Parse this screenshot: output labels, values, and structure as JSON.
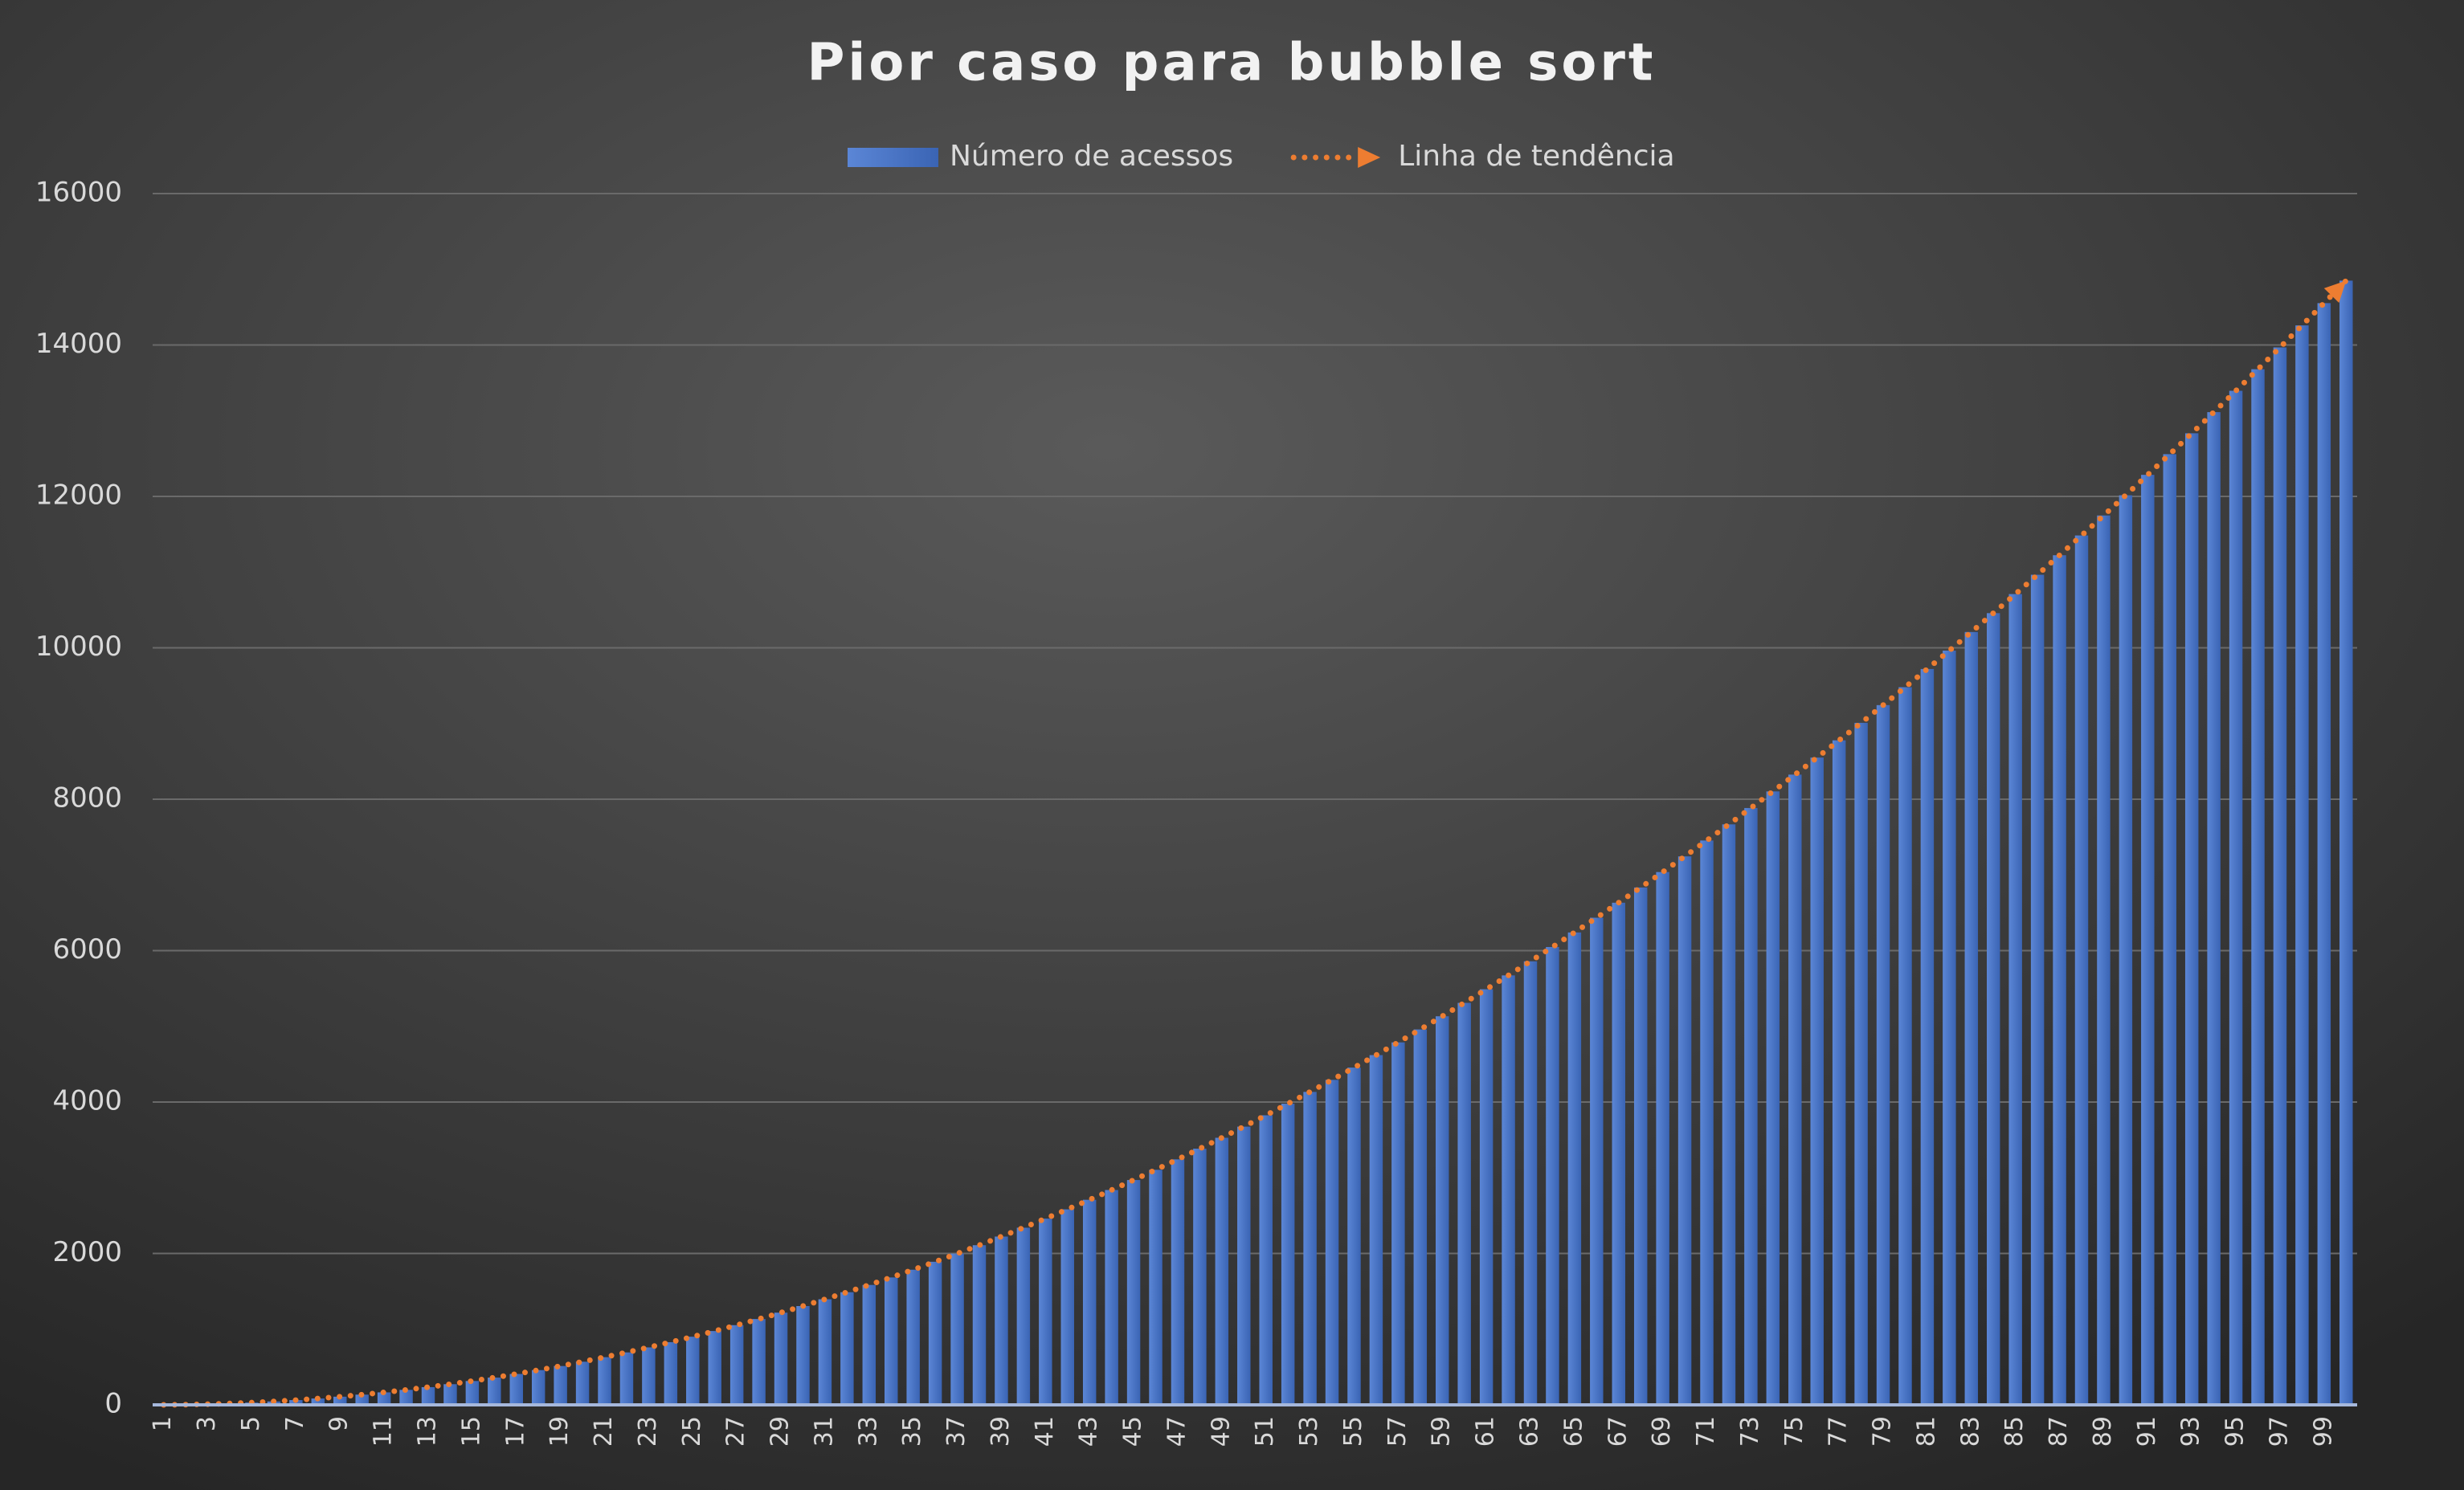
{
  "chart_data": {
    "type": "bar",
    "title": "Pior caso para bubble sort",
    "categories": [
      "1",
      null,
      "3",
      null,
      "5",
      null,
      "7",
      null,
      "9",
      null,
      "11",
      null,
      "13",
      null,
      "15",
      null,
      "17",
      null,
      "19",
      null,
      "21",
      null,
      "23",
      null,
      "25",
      null,
      "27",
      null,
      "29",
      null,
      "31",
      null,
      "33",
      null,
      "35",
      null,
      "37",
      null,
      "39",
      null,
      "41",
      null,
      "43",
      null,
      "45",
      null,
      "47",
      null,
      "49",
      null,
      "51",
      null,
      "53",
      null,
      "55",
      null,
      "57",
      null,
      "59",
      null,
      "61",
      null,
      "63",
      null,
      "65",
      null,
      "67",
      null,
      "69",
      null,
      "71",
      null,
      "73",
      null,
      "75",
      null,
      "77",
      null,
      "79",
      null,
      "81",
      null,
      "83",
      null,
      "85",
      null,
      "87",
      null,
      "89",
      null,
      "91",
      null,
      "93",
      null,
      "95",
      null,
      "97",
      null,
      "99",
      null
    ],
    "series": [
      {
        "name": "Número de acessos",
        "color": "#4472c4",
        "type": "bar",
        "values": [
          0,
          3,
          9,
          18,
          30,
          45,
          63,
          84,
          108,
          135,
          165,
          198,
          234,
          273,
          315,
          360,
          408,
          459,
          513,
          570,
          630,
          693,
          759,
          828,
          900,
          975,
          1053,
          1134,
          1218,
          1305,
          1395,
          1488,
          1584,
          1683,
          1785,
          1890,
          1998,
          2109,
          2223,
          2340,
          2460,
          2583,
          2709,
          2838,
          2970,
          3105,
          3243,
          3384,
          3528,
          3675,
          3825,
          3978,
          4134,
          4293,
          4455,
          4620,
          4788,
          4959,
          5133,
          5310,
          5490,
          5673,
          5859,
          6048,
          6240,
          6435,
          6633,
          6834,
          7038,
          7245,
          7455,
          7668,
          7884,
          8103,
          8325,
          8550,
          8778,
          9009,
          9243,
          9480,
          9720,
          9963,
          10209,
          10458,
          10710,
          10965,
          11223,
          11484,
          11748,
          12015,
          12285,
          12558,
          12834,
          13113,
          13395,
          13680,
          13968,
          14259,
          14553,
          14850
        ]
      },
      {
        "name": "Linha de tendência",
        "color": "#ed7d31",
        "type": "line",
        "values": [
          0,
          3,
          9,
          18,
          30,
          45,
          63,
          84,
          108,
          135,
          165,
          198,
          234,
          273,
          315,
          360,
          408,
          459,
          513,
          570,
          630,
          693,
          759,
          828,
          900,
          975,
          1053,
          1134,
          1218,
          1305,
          1395,
          1488,
          1584,
          1683,
          1785,
          1890,
          1998,
          2109,
          2223,
          2340,
          2460,
          2583,
          2709,
          2838,
          2970,
          3105,
          3243,
          3384,
          3528,
          3675,
          3825,
          3978,
          4134,
          4293,
          4455,
          4620,
          4788,
          4959,
          5133,
          5310,
          5490,
          5673,
          5859,
          6048,
          6240,
          6435,
          6633,
          6834,
          7038,
          7245,
          7455,
          7668,
          7884,
          8103,
          8325,
          8550,
          8778,
          9009,
          9243,
          9480,
          9720,
          9963,
          10209,
          10458,
          10710,
          10965,
          11223,
          11484,
          11748,
          12015,
          12285,
          12558,
          12834,
          13113,
          13395,
          13680,
          13968,
          14259,
          14553,
          14850
        ]
      }
    ],
    "ylim": [
      0,
      16000
    ],
    "yticks": [
      0,
      2000,
      4000,
      6000,
      8000,
      10000,
      12000,
      14000,
      16000
    ],
    "grid": true,
    "legend": "top"
  }
}
